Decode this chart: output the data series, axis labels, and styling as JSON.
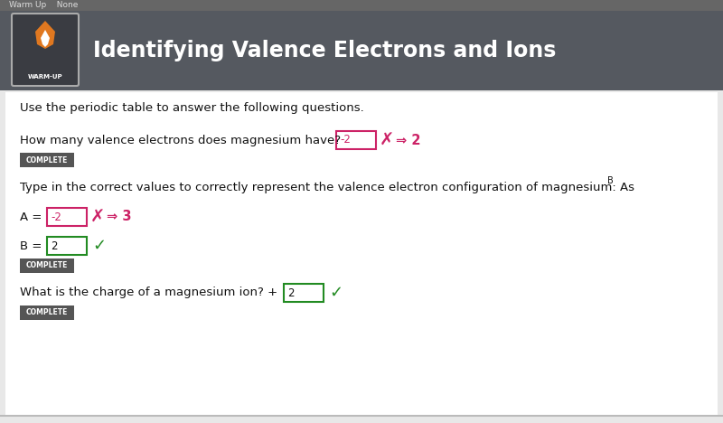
{
  "header_bg": "#555960",
  "header_title": "Identifying Valence Electrons and Ions",
  "header_title_color": "#ffffff",
  "header_title_fontsize": 17,
  "body_bg": "#e8e8e8",
  "content_bg": "#ffffff",
  "nav_bar_text": "Warm Up    None",
  "nav_bar_bg": "#666666",
  "q1_text": "Use the periodic table to answer the following questions.",
  "q2_text": "How many valence electrons does magnesium have?",
  "q2_box_val": "-2",
  "q2_correct": "⇒ 2",
  "q3_text": "Type in the correct values to correctly represent the valence electron configuration of magnesium: As",
  "q3_superscript": "B",
  "qa_label": "A = ",
  "qa_box_val": "-2",
  "qa_correct": "⇒ 3",
  "qb_label": "B = ",
  "qb_box_val": "2",
  "q4_text": "What is the charge of a magnesium ion? +",
  "q4_box_val": "2",
  "complete_bg": "#555555",
  "complete_text": "COMPLETE",
  "complete_text_color": "#ffffff",
  "box_border_wrong": "#cc2266",
  "box_border_correct": "#228B22",
  "cross_color": "#cc2266",
  "check_color": "#228B22",
  "correct_arrow_color": "#cc2266",
  "font_color": "#111111",
  "warmup_label": "WARM-UP",
  "icon_bg": "#3a3c42",
  "flame_orange": "#e07820",
  "flame_white": "#ffffff",
  "icon_border": "#aaaaaa"
}
